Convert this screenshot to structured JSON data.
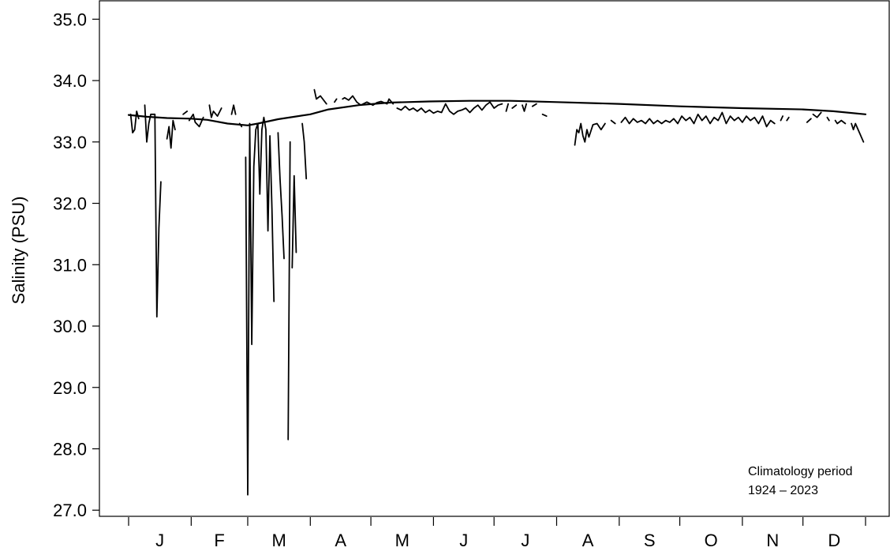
{
  "colors": {
    "background": "#ffffff",
    "axis": "#000000",
    "data_line": "#000000",
    "climatology_line": "#000000"
  },
  "annotation": {
    "line1": "Climatology period",
    "line2": "1924 – 2023"
  },
  "chart_data": {
    "type": "line",
    "title": "",
    "xlabel": "",
    "ylabel": "Salinity (PSU)",
    "ylim": [
      26.9,
      35.3
    ],
    "xlim": [
      1,
      366
    ],
    "grid": false,
    "legend": "none",
    "y_ticks": [
      27.0,
      28.0,
      29.0,
      30.0,
      31.0,
      32.0,
      33.0,
      34.0,
      35.0
    ],
    "y_tick_labels": [
      "27.0",
      "28.0",
      "29.0",
      "30.0",
      "31.0",
      "32.0",
      "33.0",
      "34.0",
      "35.0"
    ],
    "month_boundaries": [
      1,
      32,
      60,
      91,
      121,
      152,
      182,
      213,
      244,
      274,
      305,
      335,
      366
    ],
    "month_labels": [
      "J",
      "F",
      "M",
      "A",
      "M",
      "J",
      "J",
      "A",
      "S",
      "O",
      "N",
      "D"
    ],
    "series": [
      {
        "style": "solid-thick",
        "segments": [
          [
            [
              1,
              33.44
            ],
            [
              10,
              33.41
            ],
            [
              20,
              33.39
            ],
            [
              32,
              33.38
            ],
            [
              40,
              33.36
            ],
            [
              50,
              33.3
            ],
            [
              60,
              33.27
            ],
            [
              65,
              33.3
            ],
            [
              75,
              33.37
            ],
            [
              91,
              33.45
            ],
            [
              100,
              33.53
            ],
            [
              115,
              33.6
            ],
            [
              130,
              33.64
            ],
            [
              150,
              33.66
            ],
            [
              170,
              33.67
            ],
            [
              190,
              33.67
            ],
            [
              213,
              33.65
            ],
            [
              244,
              33.62
            ],
            [
              274,
              33.58
            ],
            [
              305,
              33.55
            ],
            [
              335,
              33.53
            ],
            [
              350,
              33.5
            ],
            [
              366,
              33.45
            ]
          ]
        ]
      },
      {
        "style": "solid",
        "segments": [
          [
            [
              2,
              33.45
            ],
            [
              3,
              33.15
            ],
            [
              4,
              33.2
            ],
            [
              5,
              33.5
            ],
            [
              6,
              33.38
            ]
          ],
          [
            [
              9,
              33.6
            ],
            [
              10,
              33.0
            ],
            [
              11,
              33.3
            ],
            [
              12,
              33.45
            ],
            [
              14,
              33.45
            ],
            [
              15,
              30.15
            ],
            [
              16,
              31.6
            ],
            [
              17,
              32.35
            ]
          ],
          [
            [
              20,
              33.05
            ],
            [
              21,
              33.25
            ],
            [
              22,
              32.9
            ],
            [
              23,
              33.35
            ],
            [
              24,
              33.2
            ]
          ],
          [
            [
              28,
              33.45
            ],
            [
              30,
              33.5
            ]
          ],
          [
            [
              31,
              33.35
            ],
            [
              33,
              33.45
            ],
            [
              34,
              33.32
            ],
            [
              36,
              33.25
            ],
            [
              38,
              33.4
            ]
          ],
          [
            [
              41,
              33.6
            ],
            [
              42,
              33.4
            ],
            [
              43,
              33.5
            ],
            [
              45,
              33.42
            ],
            [
              47,
              33.55
            ]
          ],
          [
            [
              52,
              33.45
            ],
            [
              53,
              33.6
            ],
            [
              54,
              33.45
            ]
          ],
          [
            [
              56,
              33.3
            ],
            [
              57,
              33.25
            ]
          ],
          [
            [
              59,
              32.75
            ],
            [
              60,
              27.25
            ],
            [
              61,
              33.3
            ],
            [
              62,
              29.7
            ],
            [
              63,
              32.6
            ],
            [
              64,
              33.2
            ],
            [
              65,
              33.3
            ],
            [
              66,
              32.15
            ],
            [
              67,
              33.2
            ],
            [
              68,
              33.4
            ],
            [
              69,
              33.2
            ],
            [
              70,
              31.55
            ],
            [
              71,
              33.1
            ],
            [
              72,
              31.9
            ],
            [
              73,
              30.4
            ]
          ],
          [
            [
              75,
              33.15
            ],
            [
              76,
              32.4
            ],
            [
              77,
              31.8
            ],
            [
              78,
              31.1
            ]
          ],
          [
            [
              80,
              28.15
            ],
            [
              81,
              33.0
            ]
          ],
          [
            [
              82,
              30.95
            ],
            [
              83,
              32.45
            ],
            [
              84,
              31.2
            ]
          ],
          [
            [
              87,
              33.3
            ],
            [
              88,
              33.0
            ],
            [
              89,
              32.4
            ]
          ],
          [
            [
              93,
              33.85
            ],
            [
              94,
              33.7
            ],
            [
              96,
              33.75
            ],
            [
              99,
              33.62
            ]
          ],
          [
            [
              103,
              33.65
            ],
            [
              104,
              33.7
            ]
          ],
          [
            [
              107,
              33.7
            ],
            [
              108,
              33.72
            ],
            [
              110,
              33.68
            ],
            [
              112,
              33.75
            ],
            [
              114,
              33.65
            ],
            [
              116,
              33.6
            ],
            [
              119,
              33.65
            ],
            [
              122,
              33.6
            ],
            [
              124,
              33.64
            ],
            [
              126,
              33.66
            ],
            [
              129,
              33.62
            ],
            [
              130,
              33.7
            ],
            [
              132,
              33.62
            ]
          ],
          [
            [
              134,
              33.55
            ],
            [
              136,
              33.52
            ],
            [
              138,
              33.58
            ],
            [
              140,
              33.52
            ],
            [
              142,
              33.55
            ],
            [
              144,
              33.5
            ],
            [
              146,
              33.55
            ],
            [
              148,
              33.48
            ],
            [
              150,
              33.52
            ],
            [
              152,
              33.47
            ],
            [
              154,
              33.5
            ],
            [
              156,
              33.48
            ],
            [
              158,
              33.62
            ],
            [
              160,
              33.5
            ],
            [
              162,
              33.45
            ],
            [
              164,
              33.5
            ],
            [
              166,
              33.52
            ],
            [
              168,
              33.55
            ],
            [
              170,
              33.48
            ],
            [
              172,
              33.55
            ],
            [
              174,
              33.6
            ],
            [
              176,
              33.52
            ],
            [
              178,
              33.6
            ],
            [
              180,
              33.65
            ],
            [
              182,
              33.55
            ],
            [
              184,
              33.6
            ],
            [
              186,
              33.62
            ]
          ],
          [
            [
              188,
              33.5
            ],
            [
              189,
              33.62
            ]
          ],
          [
            [
              191,
              33.55
            ],
            [
              193,
              33.6
            ]
          ],
          [
            [
              196,
              33.6
            ],
            [
              197,
              33.5
            ],
            [
              198,
              33.62
            ]
          ],
          [
            [
              201,
              33.58
            ],
            [
              203,
              33.62
            ]
          ],
          [
            [
              206,
              33.45
            ],
            [
              208,
              33.42
            ]
          ],
          [
            [
              222,
              32.95
            ],
            [
              223,
              33.2
            ],
            [
              224,
              33.15
            ],
            [
              225,
              33.3
            ],
            [
              226,
              33.1
            ],
            [
              227,
              33.0
            ],
            [
              228,
              33.2
            ],
            [
              229,
              33.08
            ],
            [
              231,
              33.28
            ],
            [
              233,
              33.3
            ],
            [
              235,
              33.2
            ],
            [
              237,
              33.3
            ]
          ],
          [
            [
              240,
              33.35
            ],
            [
              242,
              33.3
            ]
          ],
          [
            [
              245,
              33.32
            ],
            [
              247,
              33.4
            ],
            [
              249,
              33.3
            ],
            [
              251,
              33.38
            ],
            [
              253,
              33.32
            ],
            [
              255,
              33.35
            ],
            [
              257,
              33.3
            ],
            [
              259,
              33.38
            ],
            [
              261,
              33.3
            ],
            [
              263,
              33.35
            ],
            [
              265,
              33.3
            ],
            [
              267,
              33.35
            ],
            [
              269,
              33.32
            ],
            [
              271,
              33.38
            ],
            [
              273,
              33.3
            ],
            [
              275,
              33.42
            ],
            [
              277,
              33.35
            ],
            [
              279,
              33.4
            ],
            [
              281,
              33.3
            ],
            [
              283,
              33.45
            ],
            [
              285,
              33.35
            ],
            [
              287,
              33.42
            ],
            [
              289,
              33.3
            ],
            [
              291,
              33.4
            ],
            [
              293,
              33.35
            ],
            [
              295,
              33.48
            ],
            [
              297,
              33.3
            ],
            [
              299,
              33.42
            ],
            [
              301,
              33.35
            ],
            [
              303,
              33.4
            ],
            [
              305,
              33.32
            ],
            [
              307,
              33.42
            ],
            [
              309,
              33.35
            ],
            [
              311,
              33.4
            ],
            [
              313,
              33.3
            ],
            [
              315,
              33.42
            ],
            [
              317,
              33.25
            ],
            [
              319,
              33.35
            ],
            [
              321,
              33.3
            ]
          ],
          [
            [
              324,
              33.35
            ],
            [
              325,
              33.42
            ]
          ],
          [
            [
              327,
              33.35
            ],
            [
              328,
              33.4
            ]
          ],
          [
            [
              337,
              33.32
            ],
            [
              339,
              33.38
            ]
          ],
          [
            [
              340,
              33.45
            ],
            [
              342,
              33.4
            ],
            [
              344,
              33.48
            ]
          ],
          [
            [
              347,
              33.4
            ],
            [
              348,
              33.35
            ]
          ],
          [
            [
              351,
              33.35
            ],
            [
              352,
              33.3
            ],
            [
              354,
              33.35
            ],
            [
              356,
              33.3
            ]
          ],
          [
            [
              359,
              33.3
            ],
            [
              360,
              33.2
            ],
            [
              361,
              33.3
            ],
            [
              363,
              33.15
            ],
            [
              365,
              33.0
            ]
          ]
        ]
      }
    ]
  }
}
